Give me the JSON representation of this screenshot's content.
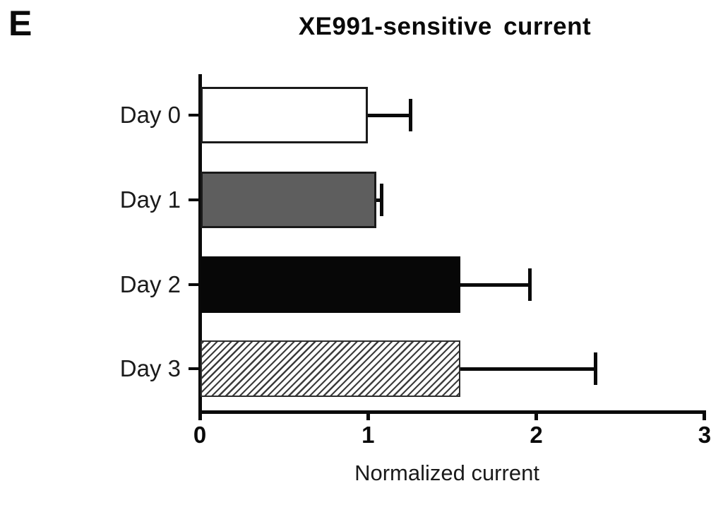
{
  "panel_label": "E",
  "title": "XE991-sensitive current",
  "xlabel": "Normalized current",
  "chart_data": {
    "type": "bar",
    "orientation": "horizontal",
    "title": "XE991-sensitive current",
    "xlabel": "Normalized current",
    "categories": [
      "Day 0",
      "Day 1",
      "Day 2",
      "Day 3"
    ],
    "values": [
      1.0,
      1.05,
      1.55,
      1.55
    ],
    "errors_plus": [
      0.25,
      0.03,
      0.41,
      0.8
    ],
    "bar_styles": [
      "white",
      "gray",
      "black",
      "hatched"
    ],
    "xlim": [
      0,
      3
    ],
    "xticks": [
      0,
      1,
      2,
      3
    ],
    "grid": false,
    "legend": "none",
    "colors": {
      "white_fill": "#ffffff",
      "gray_fill": "#5e5e5e",
      "black_fill": "#070707",
      "hatch_line": "#3c3c3c",
      "outline": "#1a1a1a",
      "axis": "#0a0a0a"
    }
  }
}
